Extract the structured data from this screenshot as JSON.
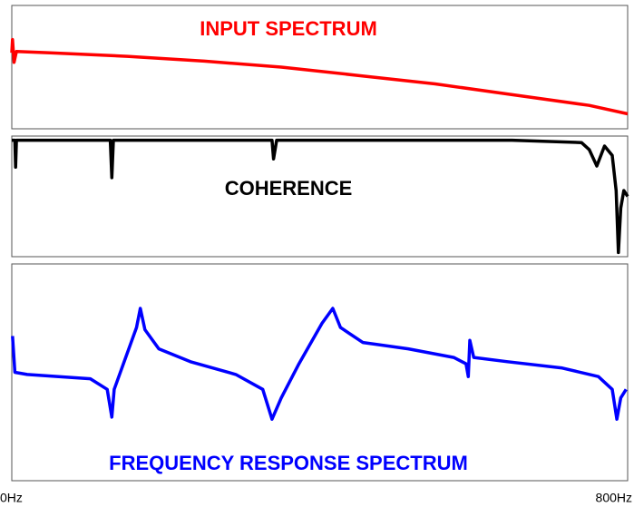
{
  "chart_data": [
    {
      "type": "line",
      "title": "INPUT SPECTRUM",
      "color": "#ff0000",
      "x": [
        0,
        1,
        3,
        6,
        50,
        150,
        250,
        350,
        450,
        550,
        650,
        750,
        800
      ],
      "values": [
        62,
        73,
        54,
        63,
        62,
        59,
        55,
        50,
        43,
        36,
        27,
        18,
        11
      ],
      "xlim": [
        0,
        800
      ],
      "ylim": [
        0,
        100
      ]
    },
    {
      "type": "line",
      "title": "COHERENCE",
      "color": "#000000",
      "x": [
        0,
        4,
        5,
        6,
        50,
        128,
        130,
        132,
        250,
        338,
        340,
        344,
        500,
        650,
        740,
        750,
        760,
        770,
        780,
        785,
        788,
        791,
        795,
        800
      ],
      "values": [
        98,
        98,
        75,
        98,
        98,
        98,
        66,
        98,
        98,
        98,
        82,
        98,
        98,
        98,
        96,
        90,
        76,
        93,
        85,
        55,
        2,
        40,
        55,
        50
      ],
      "xlim": [
        0,
        800
      ],
      "ylim": [
        0,
        100
      ]
    },
    {
      "type": "line",
      "title": "FREQUENCY RESPONSE SPECTRUM",
      "color": "#0000ff",
      "x": [
        1,
        4,
        20,
        102,
        124,
        130,
        133,
        150,
        162,
        167,
        173,
        191,
        232,
        291,
        326,
        338,
        350,
        373,
        403,
        417,
        427,
        456,
        515,
        574,
        590,
        593,
        595,
        600,
        644,
        715,
        762,
        780,
        786,
        791,
        798
      ],
      "values": [
        67,
        50,
        49,
        47,
        42,
        29,
        42,
        59,
        71,
        80,
        70,
        61,
        55,
        49,
        42,
        28,
        38,
        54,
        73,
        80,
        71,
        64,
        61,
        57,
        54,
        48,
        65,
        57,
        55,
        52,
        48,
        42,
        28,
        38,
        42
      ],
      "xlim": [
        0,
        800
      ],
      "ylim": [
        0,
        100
      ],
      "xticks": [
        {
          "value": 0,
          "label": "0Hz"
        },
        {
          "value": 800,
          "label": "800Hz"
        }
      ]
    }
  ]
}
